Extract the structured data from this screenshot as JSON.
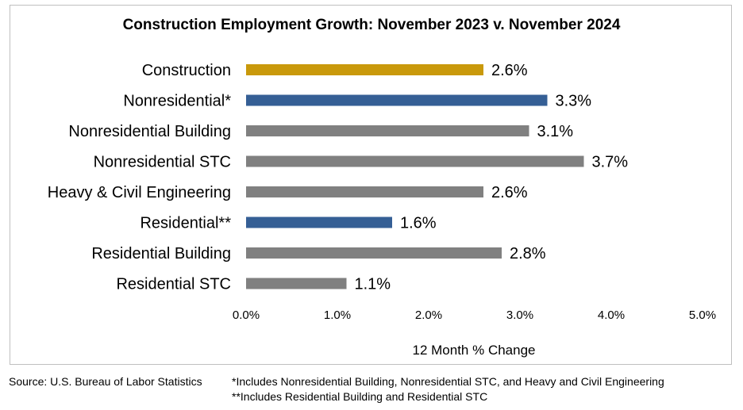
{
  "chart_data": {
    "type": "bar",
    "orientation": "horizontal",
    "title": "Construction Employment Growth: November 2023 v. November 2024",
    "xlabel": "12 Month % Change",
    "ylabel": "",
    "xlim": [
      0,
      5
    ],
    "x_ticks": [
      0,
      1,
      2,
      3,
      4,
      5
    ],
    "x_tick_labels": [
      "0.0%",
      "1.0%",
      "2.0%",
      "3.0%",
      "4.0%",
      "5.0%"
    ],
    "grid": false,
    "categories": [
      "Construction",
      "Nonresidential*",
      "Nonresidential Building",
      "Nonresidential STC",
      "Heavy & Civil Engineering",
      "Residential**",
      "Residential Building",
      "Residential STC"
    ],
    "values": [
      2.6,
      3.3,
      3.1,
      3.7,
      2.6,
      1.6,
      2.8,
      1.1
    ],
    "value_labels": [
      "2.6%",
      "3.3%",
      "3.1%",
      "3.7%",
      "2.6%",
      "1.6%",
      "2.8%",
      "1.1%"
    ],
    "colors": [
      "#c9990b",
      "#355f95",
      "#808080",
      "#808080",
      "#808080",
      "#355f95",
      "#808080",
      "#808080"
    ]
  },
  "footnotes": {
    "source": "Source:  U.S. Bureau of Labor Statistics",
    "note1": "*Includes Nonresidential Building, Nonresidential STC, and Heavy and Civil Engineering",
    "note2": "**Includes Residential Building and Residential STC"
  }
}
